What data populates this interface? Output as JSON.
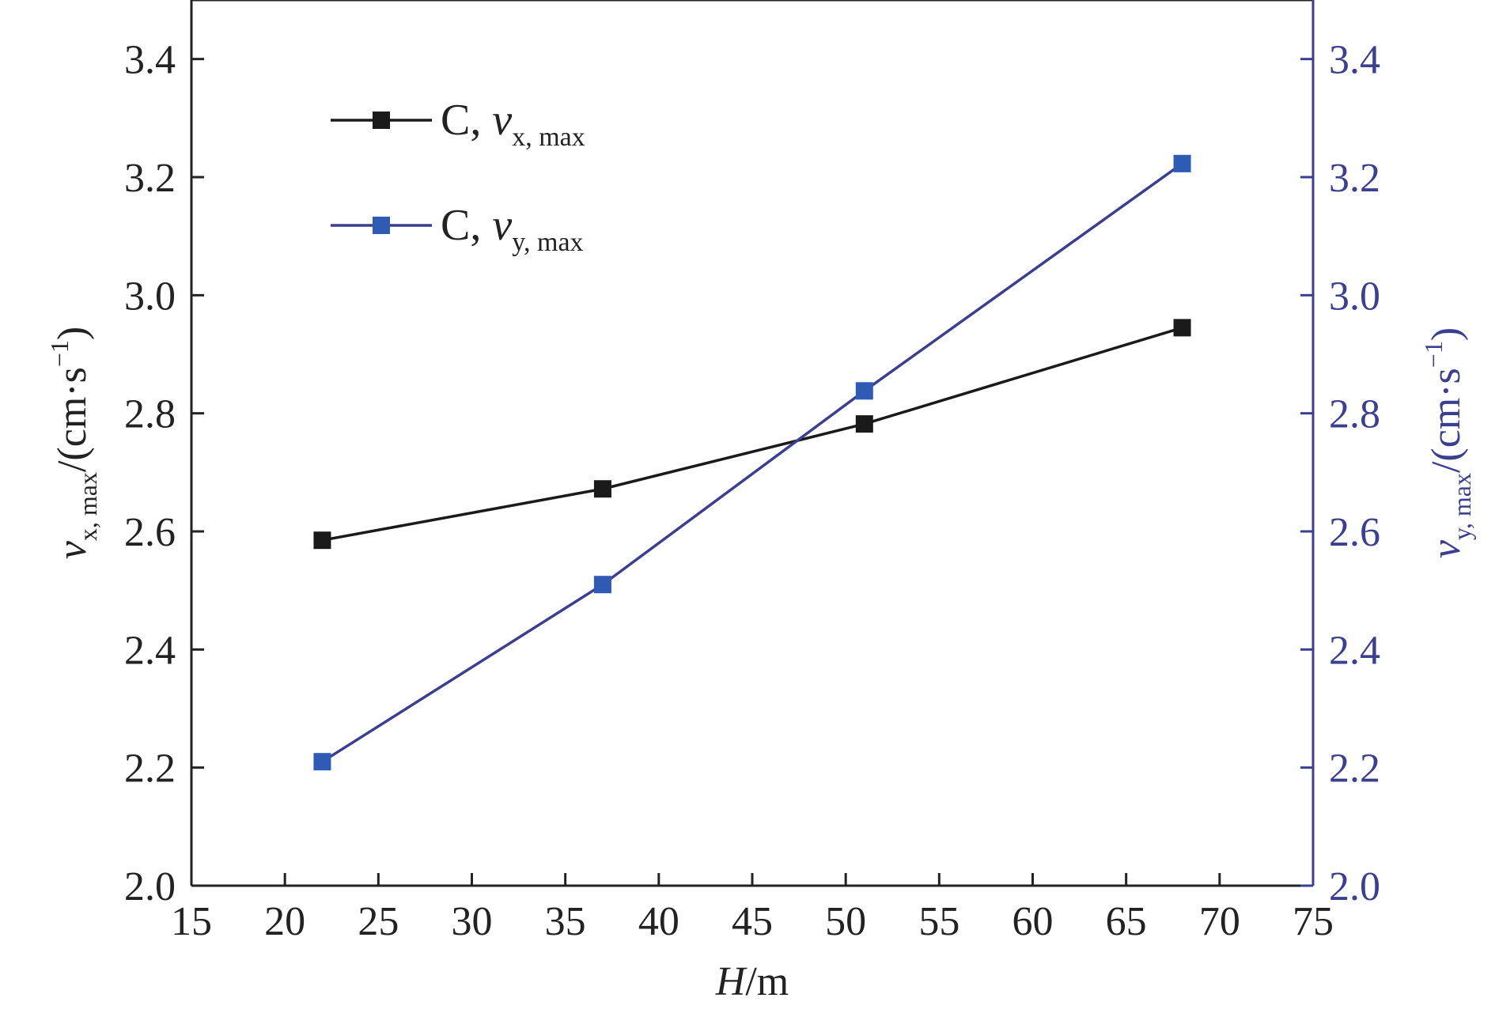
{
  "chart_data": {
    "type": "line",
    "x": [
      22,
      37,
      51,
      68
    ],
    "xlim": [
      15,
      75
    ],
    "xticks": [
      15,
      20,
      25,
      30,
      35,
      40,
      45,
      50,
      55,
      60,
      65,
      70,
      75
    ],
    "xlabel": {
      "var": "H",
      "unit": "/m"
    },
    "left_axis": {
      "label": {
        "var": "v",
        "sub": "x, max",
        "unit": "/(cm·s",
        "exp": "−1",
        "close": ")"
      },
      "ylim": [
        2.0,
        3.5
      ],
      "yticks": [
        "2.0",
        "2.2",
        "2.4",
        "2.6",
        "2.8",
        "3.0",
        "3.2",
        "3.4"
      ],
      "color": "#222222"
    },
    "right_axis": {
      "label": {
        "var": "v",
        "sub": "y, max",
        "unit": "/(cm·s",
        "exp": "−1",
        "close": ")"
      },
      "ylim": [
        2.0,
        3.5
      ],
      "yticks": [
        "2.0",
        "2.2",
        "2.4",
        "2.6",
        "2.8",
        "3.0",
        "3.2",
        "3.4"
      ],
      "color": "#3b3f8f"
    },
    "series": [
      {
        "name": "C, v_x,max",
        "legend": {
          "prefix": "C, ",
          "var": "v",
          "sub": "x, max"
        },
        "axis": "left",
        "values": [
          2.585,
          2.672,
          2.782,
          2.945
        ],
        "line_color": "#1a1a1a",
        "marker_color": "#1a1a1a"
      },
      {
        "name": "C, v_y,max",
        "legend": {
          "prefix": "C, ",
          "var": "v",
          "sub": "y, max"
        },
        "axis": "right",
        "values": [
          2.21,
          2.51,
          2.838,
          3.223
        ],
        "line_color": "#3b3f8f",
        "marker_color": "#2f5bb5"
      }
    ],
    "legend_position": "top-left",
    "grid": false
  }
}
